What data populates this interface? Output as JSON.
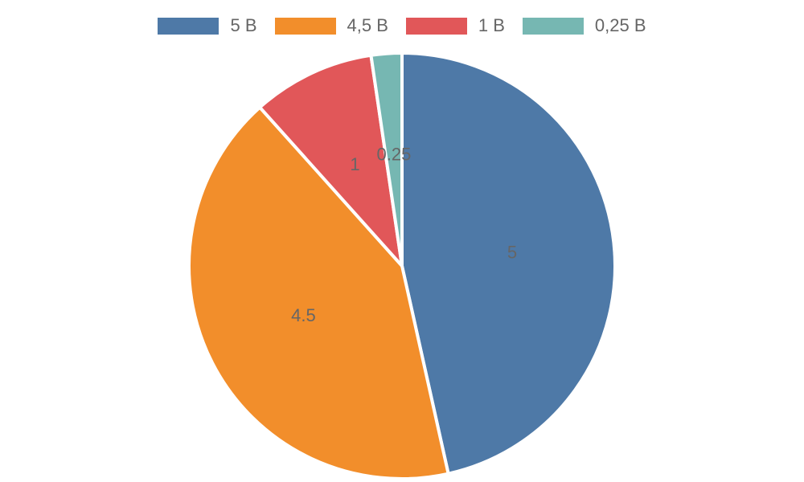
{
  "chart_data": {
    "type": "pie",
    "categories": [
      "5 B",
      "4,5 B",
      "1 B",
      "0,25 B"
    ],
    "values": [
      5,
      4.5,
      1,
      0.25
    ],
    "data_labels": [
      "5",
      "4.5",
      "1",
      "0.25"
    ],
    "colors": [
      "#4e79a7",
      "#f28e2b",
      "#e15759",
      "#76b7b2"
    ],
    "legend_position": "top",
    "start_angle": "12 o'clock",
    "direction": "clockwise"
  }
}
